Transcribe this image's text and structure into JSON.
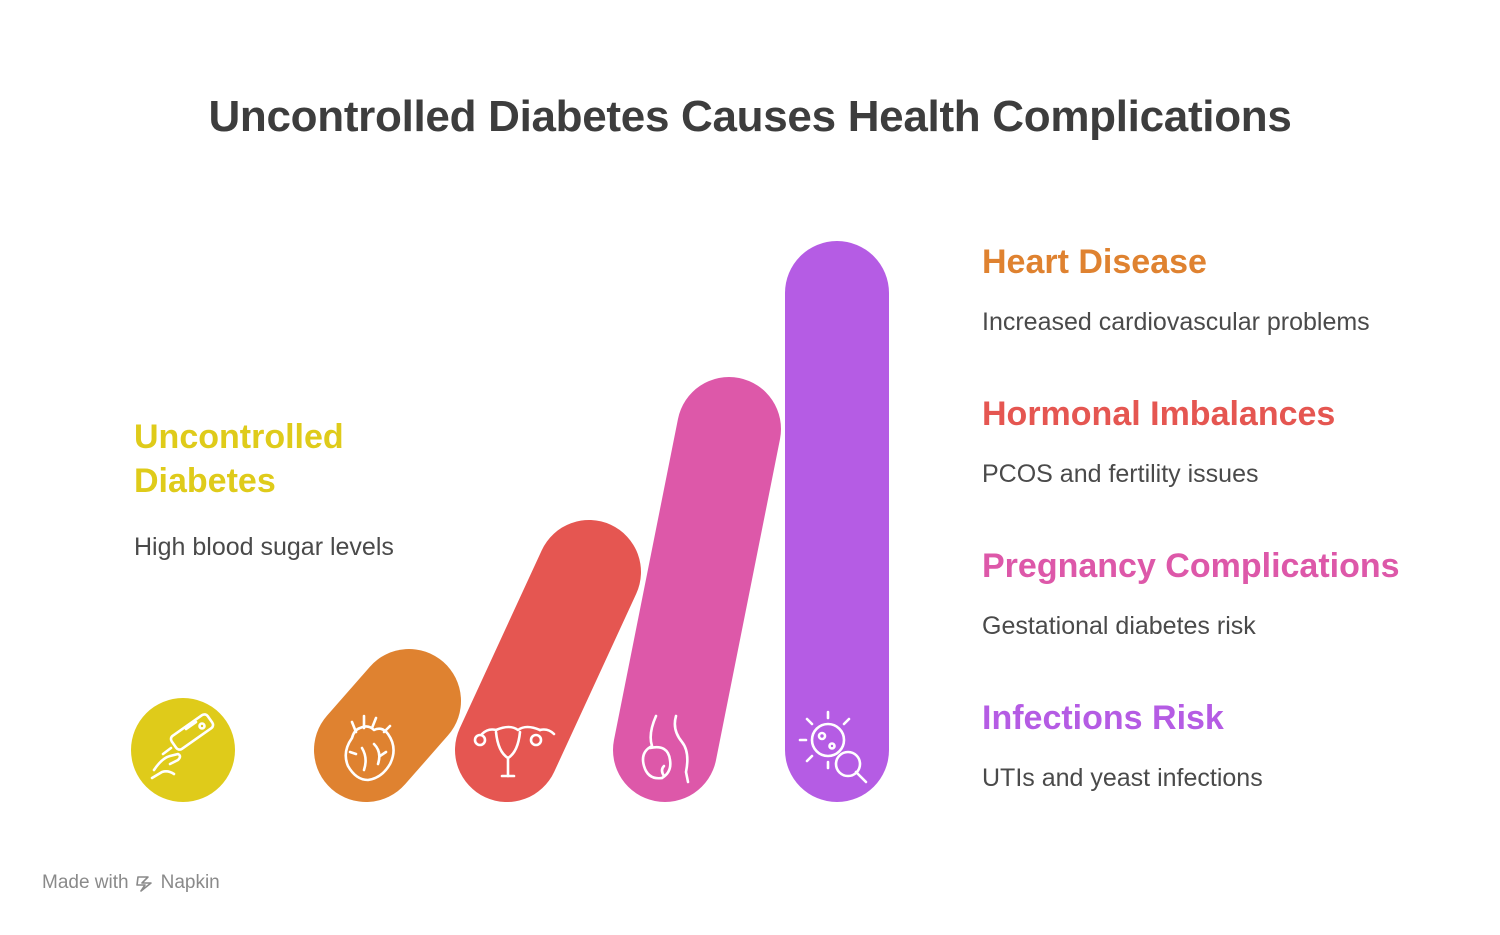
{
  "title": "Uncontrolled Diabetes Causes Health Complications",
  "source": {
    "heading": "Uncontrolled Diabetes",
    "description": "High blood sugar levels",
    "color": "#dfcb1a",
    "icon": "glucose-meter-icon"
  },
  "items": [
    {
      "heading": "Heart Disease",
      "description": "Increased cardiovascular problems",
      "color": "#df8230",
      "icon": "heart-anatomy-icon"
    },
    {
      "heading": "Hormonal Imbalances",
      "description": "PCOS and fertility issues",
      "color": "#e55651",
      "icon": "uterus-icon"
    },
    {
      "heading": "Pregnancy Complications",
      "description": "Gestational diabetes risk",
      "color": "#dd58a9",
      "icon": "pregnancy-icon"
    },
    {
      "heading": "Infections Risk",
      "description": "UTIs and yeast infections",
      "color": "#b55ce4",
      "icon": "bacteria-search-icon"
    }
  ],
  "footer": {
    "made_with": "Made with",
    "brand": "Napkin"
  }
}
